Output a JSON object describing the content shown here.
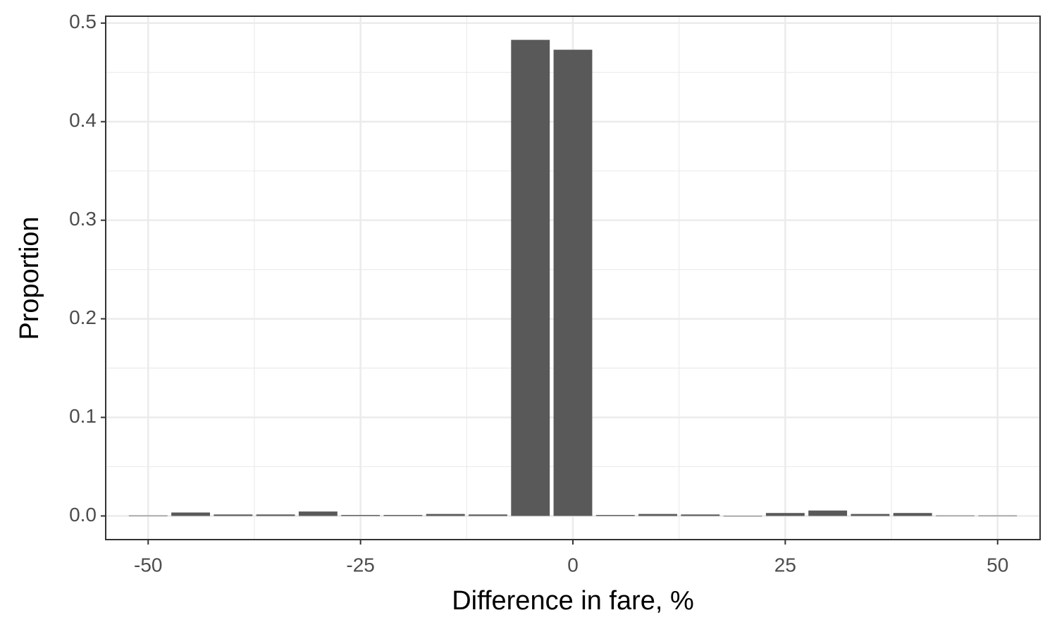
{
  "chart_data": {
    "type": "histogram",
    "x_label": "Difference in fare, %",
    "y_label": "Proportion",
    "bins": [
      -52.5,
      -47.5,
      -42.5,
      -37.5,
      -32.5,
      -27.5,
      -22.5,
      -17.5,
      -12.5,
      -7.5,
      -2.5,
      2.5,
      7.5,
      12.5,
      17.5,
      22.5,
      27.5,
      32.5,
      37.5,
      42.5,
      47.5,
      52.5
    ],
    "values": [
      0.0005,
      0.0035,
      0.0015,
      0.0015,
      0.0045,
      0.001,
      0.001,
      0.002,
      0.0015,
      0.483,
      0.473,
      0.001,
      0.002,
      0.0015,
      0,
      0.003,
      0.0055,
      0.002,
      0.003,
      0.0005,
      0.0005
    ],
    "color": "#595959",
    "xlim": [
      -55,
      55
    ],
    "ylim": [
      -0.024,
      0.507
    ],
    "xticks": [
      -50,
      -25,
      0,
      25,
      50
    ],
    "yticks": [
      {
        "value": 0,
        "label": "0.0"
      },
      0.1,
      0.2,
      0.3,
      0.4,
      0.5
    ],
    "grid": true
  }
}
